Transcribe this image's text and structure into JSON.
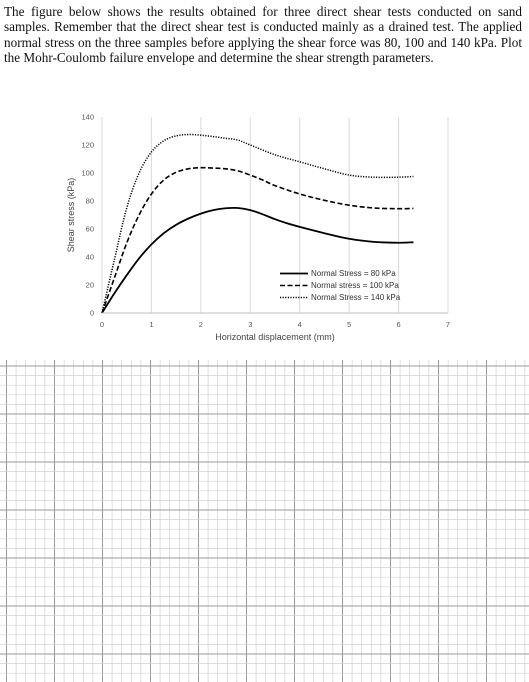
{
  "problem_text": "The figure below shows the results obtained for three direct shear tests conducted on sand samples. Remember that the direct shear test is conducted mainly as a drained test. The applied normal stress on the three samples before applying the shear force was 80, 100 and 140 kPa. Plot the Mohr-Coulomb failure envelope and determine the shear strength parameters.",
  "chart_data": {
    "type": "line",
    "title": "",
    "xlabel": "Horizontal displacement (mm)",
    "ylabel": "Shear stress (kPa)",
    "xlim": [
      0,
      7
    ],
    "ylim": [
      0,
      140
    ],
    "x_ticks": [
      "0",
      "1",
      "2",
      "3",
      "4",
      "5",
      "6",
      "7"
    ],
    "y_ticks": [
      "0",
      "20",
      "40",
      "60",
      "80",
      "100",
      "120",
      "140"
    ],
    "grid": "vertical",
    "legend_position": "right",
    "series": [
      {
        "name": "Normal Stress = 80 kPa",
        "line_style": "solid",
        "x": [
          0,
          0.25,
          0.5,
          0.75,
          1.0,
          1.25,
          1.5,
          1.75,
          2.0,
          2.25,
          2.5,
          2.75,
          3.0,
          3.25,
          3.5,
          3.75,
          4.0,
          4.5,
          5.0,
          5.5,
          6.0,
          6.3
        ],
        "y": [
          0,
          14,
          27,
          39,
          49,
          57,
          63,
          67.5,
          71,
          73.5,
          74.8,
          75,
          73.5,
          70.5,
          67,
          64,
          61.5,
          57,
          53,
          50.8,
          50.2,
          50.5
        ]
      },
      {
        "name": "Normal stress = 100 kPa",
        "line_style": "dashed",
        "x": [
          0,
          0.25,
          0.5,
          0.75,
          1.0,
          1.25,
          1.5,
          1.75,
          2.0,
          2.25,
          2.5,
          2.75,
          3.0,
          3.25,
          3.5,
          4.0,
          4.5,
          5.0,
          5.5,
          6.0,
          6.3
        ],
        "y": [
          0,
          25,
          50,
          70,
          85,
          95,
          100.5,
          103,
          103.8,
          103.5,
          103,
          101.5,
          98.5,
          95,
          91,
          85,
          80.5,
          77,
          75,
          74.5,
          74.7
        ]
      },
      {
        "name": "Normal Stress = 140 kPa",
        "line_style": "dotted",
        "x": [
          0,
          0.25,
          0.5,
          0.75,
          1.0,
          1.25,
          1.5,
          1.75,
          2.0,
          2.25,
          2.5,
          2.75,
          3.0,
          3.5,
          4.0,
          4.5,
          5.0,
          5.5,
          6.0,
          6.3
        ],
        "y": [
          0,
          38,
          75,
          100,
          115,
          123,
          126.5,
          127.5,
          127,
          126,
          124.8,
          123.5,
          120,
          113,
          108,
          103,
          98.5,
          97,
          97,
          97.5
        ]
      }
    ]
  }
}
